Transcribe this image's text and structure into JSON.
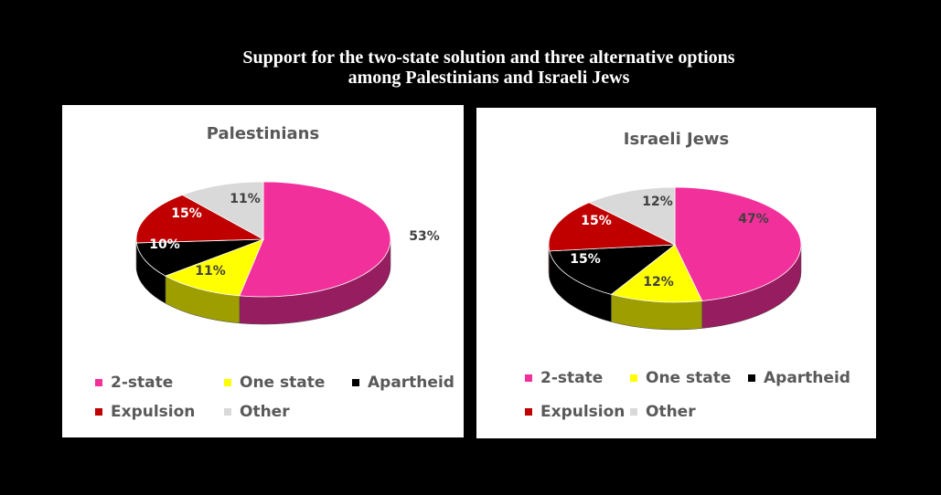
{
  "title_lines": [
    "Support for the two-state solution and three alternative options",
    "among Palestinians and Israeli Jews"
  ],
  "legend_entries": [
    "2-state",
    "One state",
    "Apartheid",
    "Expulsion",
    "Other"
  ],
  "colors": {
    "2-state": "#f2309b",
    "One state": "#ffff00",
    "Apartheid": "#000000",
    "Expulsion": "#c00000",
    "Other": "#d9d9d9"
  },
  "chart_data": [
    {
      "type": "pie",
      "title": "Palestinians",
      "categories": [
        "2-state",
        "One state",
        "Apartheid",
        "Expulsion",
        "Other"
      ],
      "values": [
        53,
        11,
        10,
        15,
        11
      ],
      "data_labels": [
        "53%",
        "11%",
        "10%",
        "15%",
        "11%"
      ],
      "legend": "bottom",
      "style": "3d"
    },
    {
      "type": "pie",
      "title": "Israeli Jews",
      "categories": [
        "2-state",
        "One state",
        "Apartheid",
        "Expulsion",
        "Other"
      ],
      "values": [
        47,
        12,
        15,
        15,
        12
      ],
      "data_labels": [
        "47%",
        "12%",
        "15%",
        "15%",
        "12%"
      ],
      "legend": "bottom",
      "style": "3d"
    }
  ]
}
